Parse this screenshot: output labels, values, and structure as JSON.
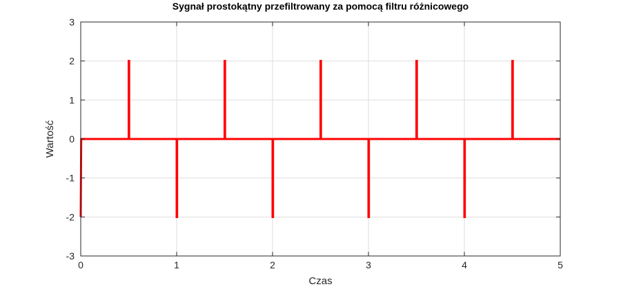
{
  "chart_data": {
    "type": "line",
    "title": "Sygnał prostokątny przefiltrowany za pomocą filtru różnicowego",
    "xlabel": "Czas",
    "ylabel": "Wartość",
    "xlim": [
      0,
      5
    ],
    "ylim": [
      -3,
      3
    ],
    "xticks": [
      0,
      1,
      2,
      3,
      4,
      5
    ],
    "yticks": [
      -3,
      -2,
      -1,
      0,
      1,
      2,
      3
    ],
    "grid": true,
    "series": [
      {
        "color": "#ff0000",
        "x": [
          0,
          0.005,
          0.005,
          0.5,
          0.5,
          0.505,
          0.505,
          1.0,
          1.0,
          1.005,
          1.005,
          1.5,
          1.5,
          1.505,
          1.505,
          2.0,
          2.0,
          2.005,
          2.005,
          2.5,
          2.5,
          2.505,
          2.505,
          3.0,
          3.0,
          3.005,
          3.005,
          3.5,
          3.5,
          3.505,
          3.505,
          4.0,
          4.0,
          4.005,
          4.005,
          4.5,
          4.5,
          4.505,
          4.505,
          5.0
        ],
        "y": [
          -2,
          0,
          0,
          0,
          2,
          2,
          0,
          0,
          -2,
          -2,
          0,
          0,
          2,
          2,
          0,
          0,
          -2,
          -2,
          0,
          0,
          2,
          2,
          0,
          0,
          -2,
          -2,
          0,
          0,
          2,
          2,
          0,
          0,
          -2,
          -2,
          0,
          0,
          2,
          2,
          0,
          0
        ]
      }
    ]
  }
}
